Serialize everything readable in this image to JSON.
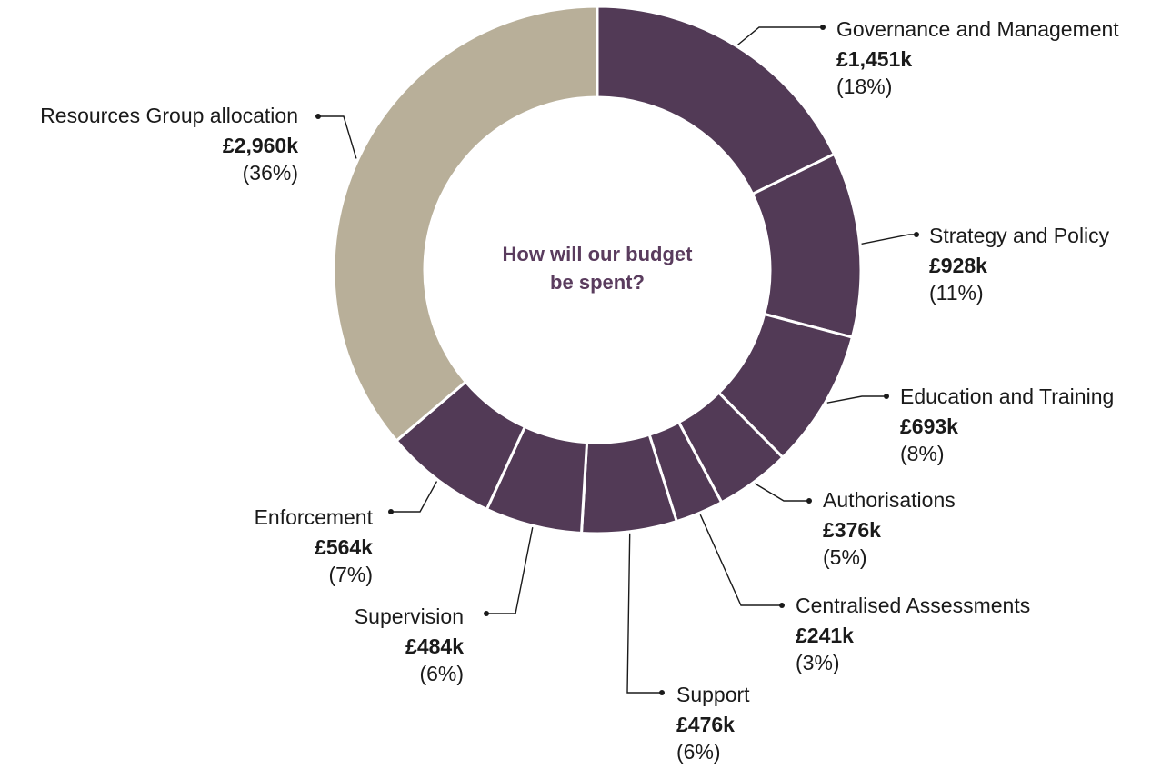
{
  "chart_data": {
    "type": "pie",
    "donut": true,
    "center_title_lines": [
      "How will our budget",
      "be spent?"
    ],
    "unit": "£k",
    "slices": [
      {
        "label": "Governance and Management",
        "value_label": "£1,451k",
        "value": 1451,
        "percent_label": "(18%)",
        "color": "#523a56"
      },
      {
        "label": "Strategy and Policy",
        "value_label": "£928k",
        "value": 928,
        "percent_label": "(11%)",
        "color": "#523a56"
      },
      {
        "label": "Education and Training",
        "value_label": "£693k",
        "value": 693,
        "percent_label": "(8%)",
        "color": "#523a56"
      },
      {
        "label": "Authorisations",
        "value_label": "£376k",
        "value": 376,
        "percent_label": "(5%)",
        "color": "#523a56"
      },
      {
        "label": "Centralised Assessments",
        "value_label": "£241k",
        "value": 241,
        "percent_label": "(3%)",
        "color": "#523a56"
      },
      {
        "label": "Support",
        "value_label": "£476k",
        "value": 476,
        "percent_label": "(6%)",
        "color": "#523a56"
      },
      {
        "label": "Supervision",
        "value_label": "£484k",
        "value": 484,
        "percent_label": "(6%)",
        "color": "#523a56"
      },
      {
        "label": "Enforcement",
        "value_label": "£564k",
        "value": 564,
        "percent_label": "(7%)",
        "color": "#523a56"
      },
      {
        "label": "Resources Group allocation",
        "value_label": "£2,960k",
        "value": 2960,
        "percent_label": "(36%)",
        "color": "#b8af99"
      }
    ]
  }
}
